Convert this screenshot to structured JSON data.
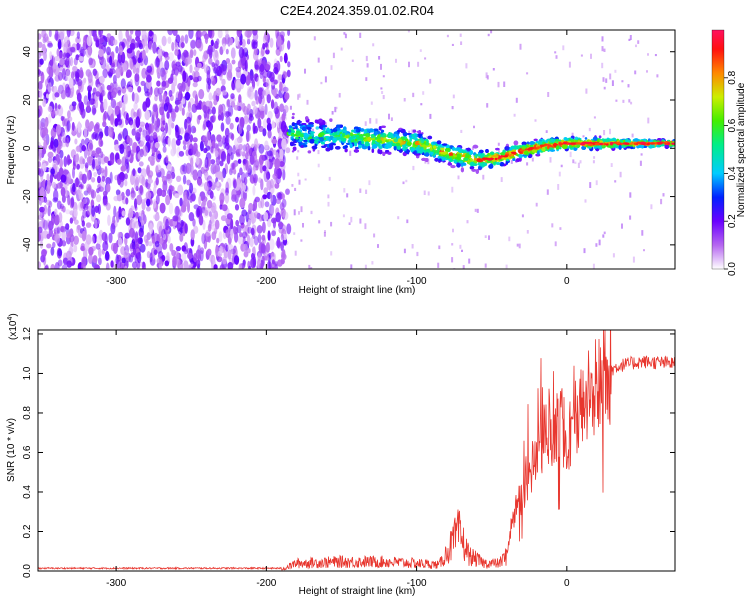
{
  "title": "C2E4.2024.359.01.02.R04",
  "chart_data": [
    {
      "type": "heatmap",
      "name": "spectrogram",
      "xlabel": "Height of straight line (km)",
      "ylabel": "Frequency (Hz)",
      "xlim": [
        -352,
        72
      ],
      "ylim": [
        -50,
        49
      ],
      "x_ticks": [
        -300,
        -200,
        -100,
        0
      ],
      "y_ticks": [
        -40,
        -20,
        0,
        20,
        40
      ],
      "x_tick_labels": [
        "-300",
        "-200",
        "-100",
        "0"
      ],
      "y_tick_labels": [
        "-40",
        "-20",
        "0",
        "20",
        "40"
      ],
      "noise_region_x": [
        -352,
        -185
      ],
      "signal_track": [
        {
          "x": -185,
          "y": 6
        },
        {
          "x": -160,
          "y": 5
        },
        {
          "x": -130,
          "y": 4
        },
        {
          "x": -100,
          "y": 2
        },
        {
          "x": -80,
          "y": -2
        },
        {
          "x": -60,
          "y": -5
        },
        {
          "x": -45,
          "y": -4
        },
        {
          "x": -30,
          "y": -1
        },
        {
          "x": -15,
          "y": 1
        },
        {
          "x": 0,
          "y": 2
        },
        {
          "x": 30,
          "y": 2
        },
        {
          "x": 72,
          "y": 2
        }
      ],
      "colorbar": {
        "label": "Normalized spectral amplitude",
        "range": [
          0.0,
          1.0
        ],
        "ticks": [
          0.0,
          0.2,
          0.4,
          0.6,
          0.8
        ],
        "tick_labels": [
          "0.0",
          "0.2",
          "0.4",
          "0.6",
          "0.8"
        ]
      }
    },
    {
      "type": "line",
      "name": "snr",
      "xlabel": "Height of straight line (km)",
      "ylabel": "SNR (10 * v/v)",
      "y_multiplier": "(x10",
      "y_multiplier_exp": "4",
      "xlim": [
        -352,
        72
      ],
      "ylim": [
        0.0,
        1.22
      ],
      "x_ticks": [
        -300,
        -200,
        -100,
        0
      ],
      "y_ticks": [
        0.0,
        0.2,
        0.4,
        0.6,
        0.8,
        1.0,
        1.2
      ],
      "x_tick_labels": [
        "-300",
        "-200",
        "-100",
        "0"
      ],
      "y_tick_labels": [
        "0.0",
        "0.2",
        "0.4",
        "0.6",
        "0.8",
        "1.0",
        "1.2"
      ],
      "color": "#e8372f",
      "envelope": [
        {
          "x": -352,
          "y": 0.01
        },
        {
          "x": -190,
          "y": 0.01
        },
        {
          "x": -180,
          "y": 0.05
        },
        {
          "x": -150,
          "y": 0.06
        },
        {
          "x": -120,
          "y": 0.06
        },
        {
          "x": -100,
          "y": 0.05
        },
        {
          "x": -85,
          "y": 0.04
        },
        {
          "x": -78,
          "y": 0.15
        },
        {
          "x": -72,
          "y": 0.25
        },
        {
          "x": -65,
          "y": 0.1
        },
        {
          "x": -55,
          "y": 0.05
        },
        {
          "x": -45,
          "y": 0.05
        },
        {
          "x": -40,
          "y": 0.1
        },
        {
          "x": -35,
          "y": 0.3
        },
        {
          "x": -28,
          "y": 0.45
        },
        {
          "x": -20,
          "y": 0.6
        },
        {
          "x": -12,
          "y": 0.75
        },
        {
          "x": -5,
          "y": 0.78
        },
        {
          "x": 0,
          "y": 0.7
        },
        {
          "x": 8,
          "y": 0.82
        },
        {
          "x": 15,
          "y": 0.92
        },
        {
          "x": 25,
          "y": 1.0
        },
        {
          "x": 35,
          "y": 1.04
        },
        {
          "x": 50,
          "y": 1.06
        },
        {
          "x": 72,
          "y": 1.05
        }
      ]
    }
  ]
}
